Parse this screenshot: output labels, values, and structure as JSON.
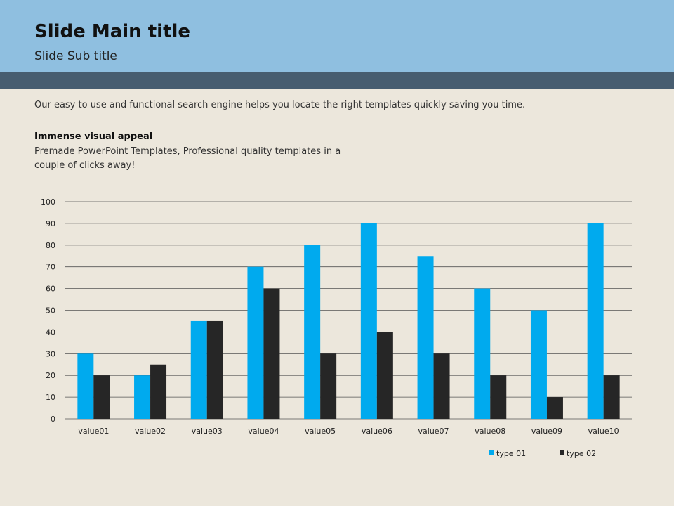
{
  "slide": {
    "title": "Slide Main title",
    "subtitle": "Slide Sub title",
    "intro": "Our easy to use and functional search engine helps you locate the right templates quickly saving you time.",
    "appeal_heading": "Immense visual appeal",
    "appeal_body": "Premade PowerPoint Templates, Professional quality templates in a couple of clicks away!"
  },
  "colors": {
    "header": "#8fbfe0",
    "band": "#475d70",
    "background": "#ece7dc",
    "type01": "#00aaee",
    "type02": "#262626"
  },
  "chart_data": {
    "type": "bar",
    "categories": [
      "value01",
      "value02",
      "value03",
      "value04",
      "value05",
      "value06",
      "value07",
      "value08",
      "value09",
      "value10"
    ],
    "series": [
      {
        "name": "type 01",
        "values": [
          30,
          20,
          45,
          70,
          80,
          90,
          75,
          60,
          50,
          90
        ],
        "color": "#00aaee"
      },
      {
        "name": "type 02",
        "values": [
          20,
          25,
          45,
          60,
          30,
          40,
          30,
          20,
          10,
          20
        ],
        "color": "#262626"
      }
    ],
    "ylim": [
      0,
      100
    ],
    "yticks": [
      0,
      10,
      20,
      30,
      40,
      50,
      60,
      70,
      80,
      90,
      100
    ],
    "grid": true,
    "legend": "bottom-right"
  }
}
